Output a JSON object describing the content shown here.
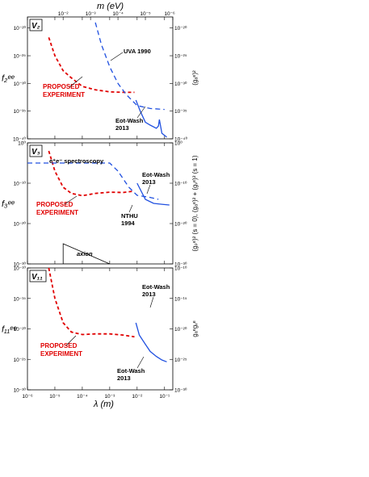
{
  "figure": {
    "top_axis_label": "m (eV)",
    "bottom_axis_label": "λ (m)",
    "top_ticks": [
      "10⁻²",
      "10⁻³",
      "10⁻⁴",
      "10⁻⁵",
      "10⁻⁶"
    ],
    "bottom_ticks": [
      "10⁻⁶",
      "10⁻⁵",
      "10⁻⁴",
      "10⁻³",
      "10⁻²",
      "10⁻¹"
    ]
  },
  "chart_data": [
    {
      "type": "line",
      "panel_tag": "V₂",
      "ylabel_left": "f₂ᵉᵉ",
      "ylabel_right": "(gₐᵉ)²",
      "x_scale": "log",
      "y_scale": "log",
      "xlim": [
        1e-06,
        0.2
      ],
      "ylim": [
        1e-40,
        1e-18
      ],
      "y_ticks": [
        "10⁻⁴⁰",
        "10⁻³⁵",
        "10⁻³⁰",
        "10⁻²⁵",
        "10⁻²⁰"
      ],
      "series": [
        {
          "style": "red-dashed",
          "x": [
            6e-06,
            1e-05,
            2e-05,
            4e-05,
            0.0001,
            0.0003,
            0.001,
            0.003,
            0.008
          ],
          "y": [
            2e-22,
            1e-25,
            2e-28,
            1e-29,
            3e-31,
            7e-32,
            3e-32,
            2.5e-32,
            2.5e-32
          ]
        },
        {
          "style": "blue-dashed",
          "x": [
            0.0003,
            0.0005,
            0.001,
            0.002,
            0.004,
            0.01,
            0.03,
            0.1
          ],
          "y": [
            1e-19,
            1e-23,
            1e-27,
            1e-30,
            1e-32,
            1e-34,
            3e-35,
            2e-35
          ]
        },
        {
          "style": "blue-solid",
          "x": [
            0.009,
            0.013,
            0.02,
            0.03,
            0.05,
            0.06,
            0.065,
            0.08,
            0.12
          ],
          "y": [
            1e-33,
            1e-35,
            1e-37,
            3e-38,
            8e-39,
            2e-38,
            3e-37,
            1e-39,
            2e-40
          ]
        }
      ],
      "annotations": [
        "UVA 1990",
        "PROPOSED EXPERIMENT",
        "Eot-Wash 2013"
      ]
    },
    {
      "type": "line",
      "panel_tag": "V₃",
      "ylabel_left": "f₃ᵉᵉ",
      "ylabel_right": "(gₚᵉ)² (s = 0), (gₐᵉ)² + (gᵥᵉ)² (s = 1)",
      "x_scale": "log",
      "y_scale": "log",
      "xlim": [
        1e-06,
        0.2
      ],
      "ylim": [
        1e-30,
        1.0
      ],
      "y_ticks": [
        "10⁻³⁰",
        "10⁻²⁰",
        "10⁻¹⁰",
        "10⁰"
      ],
      "series": [
        {
          "style": "red-dashed",
          "x": [
            6e-06,
            1e-05,
            2e-05,
            4e-05,
            0.0001,
            0.0003,
            0.001,
            0.003,
            0.007
          ],
          "y": [
            0.01,
            1e-07,
            1e-11,
            3e-13,
            8e-14,
            3e-13,
            6e-13,
            5e-13,
            1e-12
          ]
        },
        {
          "style": "blue-dashed",
          "x": [
            1e-06,
            1e-05,
            0.0001,
            0.0005,
            0.001,
            0.002,
            0.005,
            0.01,
            0.03,
            0.06
          ],
          "y": [
            1e-05,
            1e-05,
            1e-05,
            1e-05,
            1e-05,
            1e-07,
            1e-11,
            1e-13,
            3e-14,
            1e-14
          ]
        },
        {
          "style": "blue-solid",
          "x": [
            0.01,
            0.02,
            0.04,
            0.08,
            0.15
          ],
          "y": [
            1e-10,
            1e-14,
            1e-15,
            6e-16,
            4e-16
          ]
        },
        {
          "style": "black-solid",
          "name": "axion",
          "x": [
            2e-05,
            2e-05,
            0.001,
            2e-05
          ],
          "y": [
            1e-30,
            1e-25,
            1e-30,
            1e-30
          ]
        }
      ],
      "annotations": [
        "e⁺e⁻ spectroscopy",
        "PROPOSED EXPERIMENT",
        "Eot-Wash 2013",
        "NTHU 1994",
        "axion"
      ]
    },
    {
      "type": "line",
      "panel_tag": "V₁₁",
      "ylabel_left": "f₁₁ᵉᵉ",
      "ylabel_right": "gₐᵉgᵥᵉ",
      "x_scale": "log",
      "y_scale": "log",
      "xlim": [
        1e-06,
        0.2
      ],
      "ylim": [
        1e-30,
        1e-10
      ],
      "y_ticks": [
        "10⁻³⁰",
        "10⁻²⁵",
        "10⁻²⁰",
        "10⁻¹⁵",
        "10⁻¹⁰"
      ],
      "series": [
        {
          "style": "red-dashed",
          "x": [
            6e-06,
            1e-05,
            2e-05,
            4e-05,
            0.0001,
            0.0003,
            0.001,
            0.003,
            0.008
          ],
          "y": [
            1e-10,
            1e-15,
            1e-19,
            3e-21,
            1.2e-21,
            1.5e-21,
            1.5e-21,
            1e-21,
            5e-22
          ]
        },
        {
          "style": "blue-solid",
          "x": [
            0.009,
            0.012,
            0.02,
            0.03,
            0.05,
            0.08,
            0.12
          ],
          "y": [
            1e-19,
            1e-21,
            3e-23,
            2e-24,
            3e-25,
            8e-26,
            4e-26
          ]
        }
      ],
      "annotations": [
        "PROPOSED EXPERIMENT",
        "Eot-Wash 2013"
      ]
    }
  ]
}
